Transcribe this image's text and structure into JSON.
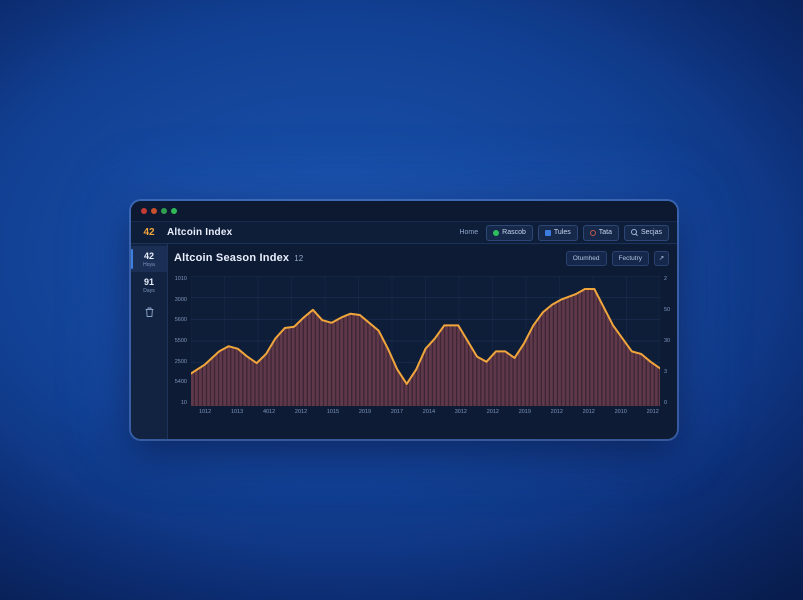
{
  "window": {
    "traffic_lights": [
      "#c43b35",
      "#c8502f",
      "#2f9e4f",
      "#31b858"
    ],
    "topbar": {
      "badge": "42",
      "title": "Altcoin Index",
      "home_label": "Home",
      "buttons": [
        {
          "icon": "green-dot",
          "label": "Rascob"
        },
        {
          "icon": "blue-square",
          "label": "Tules"
        },
        {
          "icon": "ring",
          "label": "Tata"
        },
        {
          "icon": "search",
          "label": "Secjas"
        }
      ]
    },
    "sidebar": {
      "items": [
        {
          "value": "42",
          "label": "Hoya",
          "active": true
        },
        {
          "value": "91",
          "label": "Days",
          "active": false
        }
      ]
    },
    "chart_header": {
      "title": "Altcoin Season Index",
      "value": "12",
      "buttons": [
        "Otumhed",
        "Fectutry"
      ],
      "expand_glyph": "↗"
    }
  },
  "chart_data": {
    "type": "area",
    "title": "Altcoin Season Index",
    "ylim": [
      0,
      100
    ],
    "grid": true,
    "legend": "none",
    "line_color": "#f1a63c",
    "area_color": "#5f3949",
    "area_dark": "#3c2536",
    "plot_background": "#0e1d38",
    "y_left_tick_labels": [
      "1010",
      "3000",
      "5600",
      "5500",
      "2500",
      "5400",
      "10"
    ],
    "y_right_tick_labels": [
      "2",
      "50",
      "30",
      "3",
      "0"
    ],
    "x_tick_labels": [
      "1012",
      "1013",
      "4012",
      "2012",
      "1015",
      "2019",
      "2017",
      "2014",
      "3012",
      "2012",
      "2019",
      "2012",
      "2012",
      "2010",
      "2012"
    ],
    "points": [
      [
        0,
        25
      ],
      [
        3,
        32
      ],
      [
        6,
        42
      ],
      [
        8,
        46
      ],
      [
        10,
        44
      ],
      [
        12,
        38
      ],
      [
        14,
        33
      ],
      [
        16,
        40
      ],
      [
        18,
        52
      ],
      [
        20,
        60
      ],
      [
        22,
        61
      ],
      [
        24,
        68
      ],
      [
        26,
        74
      ],
      [
        28,
        66
      ],
      [
        30,
        64
      ],
      [
        32,
        68
      ],
      [
        34,
        71
      ],
      [
        36,
        70
      ],
      [
        38,
        64
      ],
      [
        40,
        58
      ],
      [
        42,
        44
      ],
      [
        44,
        28
      ],
      [
        46,
        17
      ],
      [
        48,
        28
      ],
      [
        50,
        44
      ],
      [
        52,
        52
      ],
      [
        54,
        62
      ],
      [
        57,
        62
      ],
      [
        59,
        50
      ],
      [
        61,
        38
      ],
      [
        63,
        34
      ],
      [
        65,
        42
      ],
      [
        67,
        42
      ],
      [
        69,
        37
      ],
      [
        71,
        48
      ],
      [
        73,
        62
      ],
      [
        75,
        72
      ],
      [
        77,
        78
      ],
      [
        79,
        82
      ],
      [
        82,
        86
      ],
      [
        84,
        90
      ],
      [
        86,
        90
      ],
      [
        88,
        76
      ],
      [
        90,
        62
      ],
      [
        92,
        52
      ],
      [
        94,
        42
      ],
      [
        96,
        40
      ],
      [
        98,
        34
      ],
      [
        100,
        29
      ]
    ]
  }
}
